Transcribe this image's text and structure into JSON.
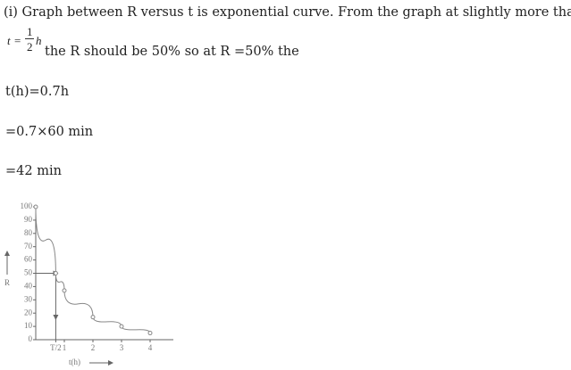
{
  "text": {
    "line1": "(i) Graph between R versus t is exponential curve. From the graph at slightly more than",
    "line2": "the R should be 50% so at R =50% the",
    "line3": "t(h)=0.7h",
    "line4": "=0.7×60 min",
    "line5": "=42 min"
  },
  "formula": {
    "lhs": "t",
    "equals": "=",
    "numerator": "1",
    "denominator": "2",
    "variable": "h"
  },
  "graph": {
    "ylim": [
      0,
      100
    ],
    "yticks": [
      0,
      10,
      20,
      30,
      40,
      50,
      60,
      70,
      80,
      90,
      100
    ],
    "xlim": [
      0,
      4.5
    ],
    "xticks": [
      {
        "value": 0.7,
        "label": "T/2"
      },
      1,
      2,
      3,
      4
    ],
    "y_label": "R",
    "x_label": "t(h)",
    "curve": {
      "x": [
        0,
        0.7,
        1,
        2,
        3,
        4
      ],
      "y": [
        100,
        50,
        37,
        17,
        10,
        5
      ]
    }
  }
}
